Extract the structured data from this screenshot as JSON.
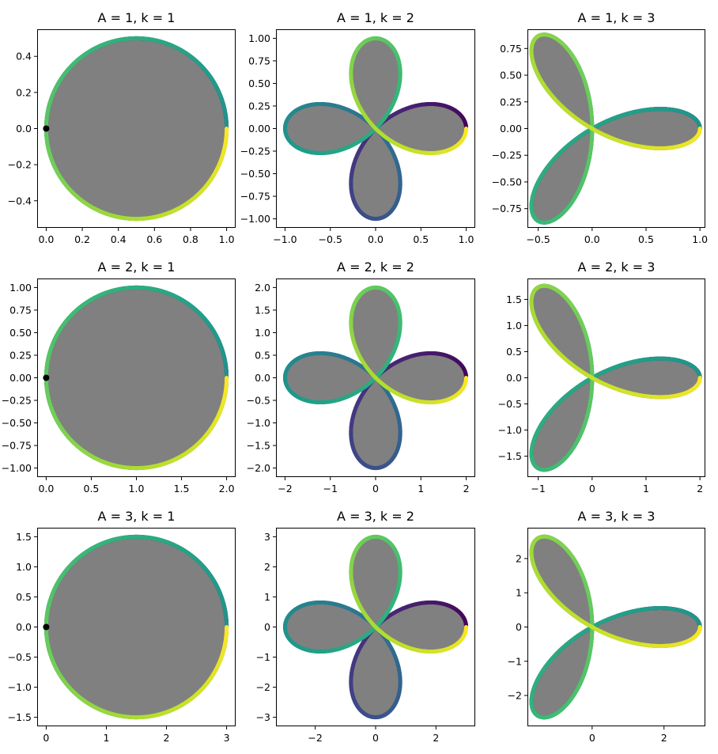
{
  "chart_data": [
    {
      "type": "line",
      "title": "A = 1, k = 1",
      "A": 1,
      "k": 1,
      "curve": "r = A*cos(k*theta)",
      "fill": "gray",
      "colormap": "viridis",
      "xlim": [
        -0.05,
        1.05
      ],
      "ylim": [
        -0.55,
        0.55
      ],
      "xticks": [
        0,
        0.2,
        0.4,
        0.6,
        0.8,
        1.0
      ],
      "xtick_labels": [
        "0.0",
        "0.2",
        "0.4",
        "0.6",
        "0.8",
        "1.0"
      ],
      "yticks": [
        -0.4,
        -0.2,
        0,
        0.2,
        0.4
      ],
      "ytick_labels": [
        "−0.4",
        "−0.2",
        "0.0",
        "0.2",
        "0.4"
      ],
      "marker": [
        0,
        0
      ]
    },
    {
      "type": "line",
      "title": "A = 1, k = 2",
      "A": 1,
      "k": 2,
      "curve": "r = A*cos(k*theta)",
      "fill": "gray",
      "colormap": "viridis",
      "xlim": [
        -1.1,
        1.1
      ],
      "ylim": [
        -1.1,
        1.1
      ],
      "xticks": [
        -1,
        -0.5,
        0,
        0.5,
        1
      ],
      "xtick_labels": [
        "−1.0",
        "−0.5",
        "0.0",
        "0.5",
        "1.0"
      ],
      "yticks": [
        -1,
        -0.75,
        -0.5,
        -0.25,
        0,
        0.25,
        0.5,
        0.75,
        1
      ],
      "ytick_labels": [
        "−1.00",
        "−0.75",
        "−0.50",
        "−0.25",
        "0.00",
        "0.25",
        "0.50",
        "0.75",
        "1.00"
      ]
    },
    {
      "type": "line",
      "title": "A = 1, k = 3",
      "A": 1,
      "k": 3,
      "curve": "r = A*cos(k*theta)",
      "fill": "gray",
      "colormap": "viridis",
      "xlim": [
        -0.6,
        1.05
      ],
      "ylim": [
        -0.93,
        0.93
      ],
      "xticks": [
        -0.5,
        0,
        0.5,
        1
      ],
      "xtick_labels": [
        "−0.5",
        "0.0",
        "0.5",
        "1.0"
      ],
      "yticks": [
        -0.75,
        -0.5,
        -0.25,
        0,
        0.25,
        0.5,
        0.75
      ],
      "ytick_labels": [
        "−0.75",
        "−0.50",
        "−0.25",
        "0.00",
        "0.25",
        "0.50",
        "0.75"
      ]
    },
    {
      "type": "line",
      "title": "A = 2, k = 1",
      "A": 2,
      "k": 1,
      "curve": "r = A*cos(k*theta)",
      "fill": "gray",
      "colormap": "viridis",
      "xlim": [
        -0.1,
        2.1
      ],
      "ylim": [
        -1.1,
        1.1
      ],
      "xticks": [
        0,
        0.5,
        1,
        1.5,
        2
      ],
      "xtick_labels": [
        "0.0",
        "0.5",
        "1.0",
        "1.5",
        "2.0"
      ],
      "yticks": [
        -1,
        -0.75,
        -0.5,
        -0.25,
        0,
        0.25,
        0.5,
        0.75,
        1
      ],
      "ytick_labels": [
        "−1.00",
        "−0.75",
        "−0.50",
        "−0.25",
        "0.00",
        "0.25",
        "0.50",
        "0.75",
        "1.00"
      ],
      "marker": [
        0,
        0
      ]
    },
    {
      "type": "line",
      "title": "A = 2, k = 2",
      "A": 2,
      "k": 2,
      "curve": "r = A*cos(k*theta)",
      "fill": "gray",
      "colormap": "viridis",
      "xlim": [
        -2.2,
        2.2
      ],
      "ylim": [
        -2.2,
        2.2
      ],
      "xticks": [
        -2,
        -1,
        0,
        1,
        2
      ],
      "xtick_labels": [
        "−2",
        "−1",
        "0",
        "1",
        "2"
      ],
      "yticks": [
        -2,
        -1.5,
        -1,
        -0.5,
        0,
        0.5,
        1,
        1.5,
        2
      ],
      "ytick_labels": [
        "−2.0",
        "−1.5",
        "−1.0",
        "−0.5",
        "0.0",
        "0.5",
        "1.0",
        "1.5",
        "2.0"
      ]
    },
    {
      "type": "line",
      "title": "A = 2, k = 3",
      "A": 2,
      "k": 3,
      "curve": "r = A*cos(k*theta)",
      "fill": "gray",
      "colormap": "viridis",
      "xlim": [
        -1.2,
        2.1
      ],
      "ylim": [
        -1.9,
        1.9
      ],
      "xticks": [
        -1,
        0,
        1,
        2
      ],
      "xtick_labels": [
        "−1",
        "0",
        "1",
        "2"
      ],
      "yticks": [
        -1.5,
        -1,
        -0.5,
        0,
        0.5,
        1,
        1.5
      ],
      "ytick_labels": [
        "−1.5",
        "−1.0",
        "−0.5",
        "0.0",
        "0.5",
        "1.0",
        "1.5"
      ]
    },
    {
      "type": "line",
      "title": "A = 3, k = 1",
      "A": 3,
      "k": 1,
      "curve": "r = A*cos(k*theta)",
      "fill": "gray",
      "colormap": "viridis",
      "xlim": [
        -0.15,
        3.15
      ],
      "ylim": [
        -1.65,
        1.65
      ],
      "xticks": [
        0,
        1,
        2,
        3
      ],
      "xtick_labels": [
        "0",
        "1",
        "2",
        "3"
      ],
      "yticks": [
        -1.5,
        -1,
        -0.5,
        0,
        0.5,
        1,
        1.5
      ],
      "ytick_labels": [
        "−1.5",
        "−1.0",
        "−0.5",
        "0.0",
        "0.5",
        "1.0",
        "1.5"
      ],
      "marker": [
        0,
        0
      ]
    },
    {
      "type": "line",
      "title": "A = 3, k = 2",
      "A": 3,
      "k": 2,
      "curve": "r = A*cos(k*theta)",
      "fill": "gray",
      "colormap": "viridis",
      "xlim": [
        -3.3,
        3.3
      ],
      "ylim": [
        -3.3,
        3.3
      ],
      "xticks": [
        -2,
        0,
        2
      ],
      "xtick_labels": [
        "−2",
        "0",
        "2"
      ],
      "yticks": [
        -3,
        -2,
        -1,
        0,
        1,
        2,
        3
      ],
      "ytick_labels": [
        "−3",
        "−2",
        "−1",
        "0",
        "1",
        "2",
        "3"
      ]
    },
    {
      "type": "line",
      "title": "A = 3, k = 3",
      "A": 3,
      "k": 3,
      "curve": "r = A*cos(k*theta)",
      "fill": "gray",
      "colormap": "viridis",
      "xlim": [
        -1.8,
        3.15
      ],
      "ylim": [
        -2.9,
        2.9
      ],
      "xticks": [
        0,
        2
      ],
      "xtick_labels": [
        "0",
        "2"
      ],
      "yticks": [
        -2,
        -1,
        0,
        1,
        2
      ],
      "ytick_labels": [
        "−2",
        "−1",
        "0",
        "1",
        "2"
      ]
    }
  ]
}
